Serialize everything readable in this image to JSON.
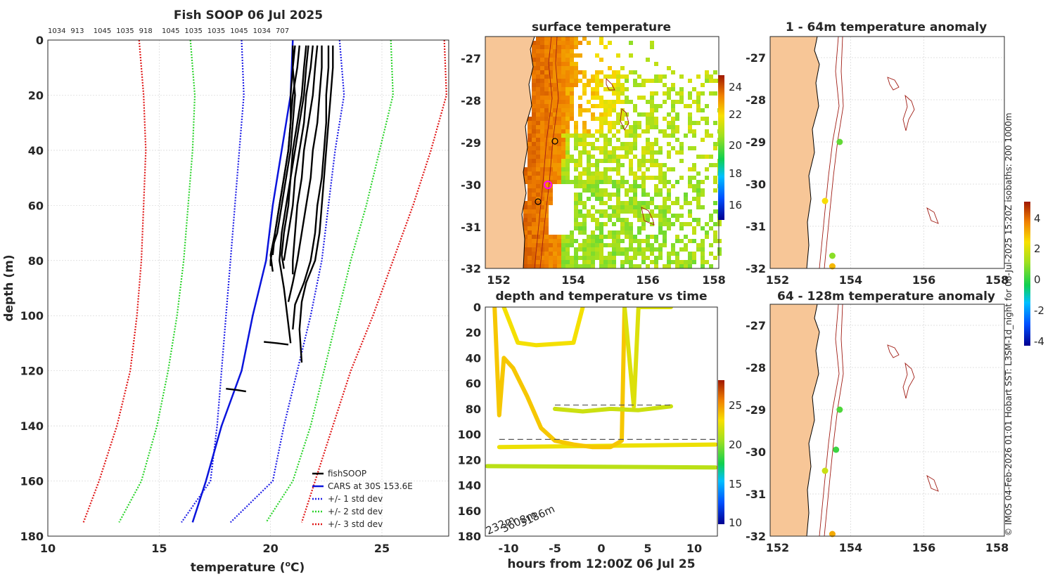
{
  "footer": {
    "credit": "© IMOS 04-Feb-2026 01:01 Hobart SST: L3SM-1d_night for 06-Jul-2025 15:20Z isobaths: 200  1000m"
  },
  "colors": {
    "profile": "#000000",
    "cars": "#0a14dc",
    "std1": "#1e1ee6",
    "std2": "#2dd42d",
    "std3": "#e01818",
    "land": "#f7c697",
    "isobath": "#a01c14"
  },
  "chart_data": [
    {
      "id": "profiles",
      "type": "line",
      "title": "Fish SOOP 06 Jul 2025",
      "top_labels": [
        "1034",
        "913",
        "1045",
        "1035",
        "918",
        "1045",
        "1035",
        "1035",
        "1045",
        "1034",
        "707"
      ],
      "xlabel": "temperature (",
      "xlabel_sup": "o",
      "xlabel_tail": "C)",
      "ylabel": "depth (m)",
      "xlim": [
        10,
        28
      ],
      "ylim": [
        0,
        180
      ],
      "xticks": [
        10,
        15,
        20,
        25
      ],
      "yticks": [
        0,
        20,
        40,
        60,
        80,
        100,
        120,
        140,
        160,
        180
      ],
      "legend": [
        "fishSOOP",
        "CARS at 30S 153.6E",
        "+/- 1 std dev",
        "+/- 2 std dev",
        "+/- 3 std dev"
      ],
      "legend_position": "bottom-right",
      "depths": [
        0,
        20,
        40,
        60,
        80,
        100,
        120,
        140,
        160,
        175
      ],
      "cars_mean": [
        21.0,
        20.9,
        20.5,
        20.1,
        19.8,
        19.2,
        18.7,
        17.8,
        17.1,
        16.5
      ],
      "std1_lo": [
        18.7,
        18.8,
        18.6,
        18.4,
        18.2,
        18.0,
        17.8,
        17.6,
        17.3,
        16.0
      ],
      "std1_hi": [
        23.1,
        23.3,
        22.9,
        22.6,
        22.3,
        21.8,
        21.2,
        20.6,
        20.1,
        18.2
      ],
      "std2_lo": [
        16.4,
        16.6,
        16.5,
        16.3,
        16.1,
        15.8,
        15.4,
        14.9,
        14.2,
        13.2
      ],
      "std2_hi": [
        25.4,
        25.5,
        24.9,
        24.3,
        23.6,
        23.0,
        22.4,
        21.8,
        21.0,
        19.8
      ],
      "std3_lo": [
        14.1,
        14.3,
        14.4,
        14.3,
        14.2,
        14.0,
        13.7,
        13.1,
        12.3,
        11.6
      ],
      "std3_hi": [
        27.8,
        27.9,
        27.2,
        26.4,
        25.5,
        24.6,
        23.6,
        22.8,
        22.0,
        21.4
      ],
      "fishsoop_profiles": [
        {
          "t": [
            21.0,
            21.0,
            21.1,
            21.0,
            20.9,
            20.7,
            20.5,
            20.3,
            20.1,
            20.0,
            20.0
          ],
          "d": [
            2,
            10,
            20,
            30,
            40,
            50,
            60,
            70,
            75,
            80,
            82
          ]
        },
        {
          "t": [
            21.3,
            21.2,
            21.0,
            20.9,
            20.8,
            20.6,
            20.4,
            20.2,
            20.0,
            20.1
          ],
          "d": [
            2,
            10,
            20,
            30,
            40,
            50,
            60,
            70,
            78,
            84
          ]
        },
        {
          "t": [
            21.6,
            21.5,
            21.4,
            21.2,
            21.0,
            20.9,
            20.8,
            20.6,
            20.5,
            20.6
          ],
          "d": [
            2,
            10,
            20,
            30,
            40,
            50,
            60,
            70,
            78,
            83
          ]
        },
        {
          "t": [
            21.9,
            21.8,
            21.6,
            21.5,
            21.3,
            21.1,
            21.0,
            20.8,
            20.6
          ],
          "d": [
            2,
            10,
            20,
            30,
            40,
            50,
            60,
            70,
            80
          ]
        },
        {
          "t": [
            22.1,
            22.0,
            21.9,
            21.7,
            21.5,
            21.4,
            21.2,
            21.1,
            21.0,
            21.0
          ],
          "d": [
            2,
            10,
            20,
            30,
            40,
            50,
            60,
            70,
            80,
            85
          ]
        },
        {
          "t": [
            22.3,
            22.3,
            22.2,
            22.1,
            21.9,
            21.8,
            21.6,
            21.4,
            21.2,
            21.0,
            20.8
          ],
          "d": [
            2,
            10,
            20,
            30,
            40,
            50,
            60,
            70,
            80,
            88,
            95
          ]
        },
        {
          "t": [
            22.6,
            22.6,
            22.5,
            22.5,
            22.4,
            22.3,
            22.1,
            22.0,
            21.8,
            21.5,
            21.1,
            21.0
          ],
          "d": [
            2,
            10,
            20,
            30,
            40,
            50,
            60,
            70,
            80,
            88,
            96,
            105
          ]
        },
        {
          "t": [
            22.8,
            22.8,
            22.7,
            22.6,
            22.5,
            22.4,
            22.3,
            22.2,
            22.0,
            21.6,
            21.4,
            21.3,
            21.4
          ],
          "d": [
            2,
            10,
            20,
            30,
            40,
            50,
            60,
            70,
            80,
            88,
            95,
            105,
            117
          ]
        },
        {
          "t": [
            21.7,
            21.6,
            21.5,
            21.3,
            21.1,
            20.9,
            20.7,
            20.5,
            20.4,
            20.6,
            20.9
          ],
          "d": [
            2,
            10,
            20,
            30,
            40,
            50,
            60,
            70,
            80,
            90,
            110
          ]
        },
        {
          "t": [
            21.1,
            21.0,
            20.9,
            20.9,
            20.8,
            20.6,
            20.4,
            20.2,
            20.1
          ],
          "d": [
            2,
            10,
            20,
            30,
            40,
            50,
            60,
            70,
            78
          ]
        },
        {
          "t": [
            19.7,
            20.3,
            20.8
          ],
          "d": [
            109.5,
            110.0,
            110.5
          ]
        },
        {
          "t": [
            18.0,
            18.5,
            18.9
          ],
          "d": [
            126.5,
            127.0,
            127.5
          ]
        }
      ]
    },
    {
      "id": "sst_map",
      "type": "heatmap",
      "title": "surface temperature",
      "xticks": [
        "152",
        "154",
        "156",
        "158"
      ],
      "yticks": [
        "-27",
        "-28",
        "-29",
        "-30",
        "-31",
        "-32"
      ],
      "colorbar_ticks": [
        "24",
        "22",
        "20",
        "18",
        "16"
      ],
      "colorbar_range": [
        15,
        25
      ]
    },
    {
      "id": "depth_time",
      "type": "scatter",
      "title": "depth and temperature vs time",
      "xlabel": "hours from 12:00Z 06 Jul 25",
      "xlim": [
        -12.5,
        12.5
      ],
      "ylim": [
        0,
        180
      ],
      "xticks": [
        "-10",
        "-5",
        "0",
        "5",
        "10"
      ],
      "yticks": [
        "0",
        "20",
        "40",
        "60",
        "80",
        "100",
        "120",
        "140",
        "160",
        "180"
      ],
      "colorbar_ticks": [
        "25",
        "20",
        "15",
        "10"
      ],
      "colorbar_range": [
        9.5,
        28
      ],
      "bottom_depth_labels": [
        "232m",
        "3608m",
        "3186m"
      ],
      "dashed_reference_depths": [
        77,
        104
      ],
      "tracks": [
        {
          "temp": 21.0,
          "t": [
            -12.3,
            12.3
          ],
          "d": [
            125,
            126
          ]
        },
        {
          "temp": 22.5,
          "t": [
            -11.0,
            12.3
          ],
          "d": [
            110,
            108
          ]
        },
        {
          "temp": 23.5,
          "t": [
            -11.5,
            -11.0,
            -10.5,
            -9.5,
            -8.0,
            -6.5,
            -5.0,
            -3.0,
            -1.0,
            1.0,
            2.2,
            2.5
          ],
          "d": [
            0,
            85,
            40,
            48,
            70,
            95,
            105,
            108,
            110,
            110,
            105,
            0
          ]
        },
        {
          "temp": 22.7,
          "t": [
            -10.5,
            -9.0,
            -7.0,
            -5.0,
            -3.0,
            -2.0
          ],
          "d": [
            0,
            28,
            30,
            29,
            28,
            0
          ]
        },
        {
          "temp": 21.5,
          "t": [
            -5.0,
            -2.0,
            1.0,
            4.0,
            7.5
          ],
          "d": [
            80,
            82,
            80,
            81,
            78
          ]
        },
        {
          "temp": 22.0,
          "t": [
            2.5,
            3.5,
            4.0,
            7.5
          ],
          "d": [
            0,
            78,
            0,
            0
          ]
        }
      ]
    },
    {
      "id": "anomaly_1_64",
      "type": "scatter",
      "title": "1 - 64m temperature anomaly",
      "xticks": [
        "152",
        "154",
        "156",
        "158"
      ],
      "yticks": [
        "-27",
        "-28",
        "-29",
        "-30",
        "-31",
        "-32"
      ],
      "points": [
        {
          "lon": 153.7,
          "lat": -29.0,
          "anom": 0.6
        },
        {
          "lon": 153.3,
          "lat": -30.4,
          "anom": 2.5
        },
        {
          "lon": 153.5,
          "lat": -31.7,
          "anom": 1.0
        },
        {
          "lon": 153.5,
          "lat": -31.95,
          "anom": 3.0
        }
      ]
    },
    {
      "id": "anomaly_64_128",
      "type": "scatter",
      "title": "64 - 128m temperature anomaly",
      "xticks": [
        "152",
        "154",
        "156",
        "158"
      ],
      "yticks": [
        "-27",
        "-28",
        "-29",
        "-30",
        "-31",
        "-32"
      ],
      "colorbar_ticks": [
        "4",
        "2",
        "0",
        "-2",
        "-4"
      ],
      "colorbar_range": [
        -4,
        5
      ],
      "points": [
        {
          "lon": 153.7,
          "lat": -29.0,
          "anom": 0.4
        },
        {
          "lon": 153.6,
          "lat": -29.95,
          "anom": 0.2
        },
        {
          "lon": 153.3,
          "lat": -30.45,
          "anom": 1.8
        },
        {
          "lon": 153.5,
          "lat": -31.95,
          "anom": 3.2
        }
      ]
    }
  ]
}
